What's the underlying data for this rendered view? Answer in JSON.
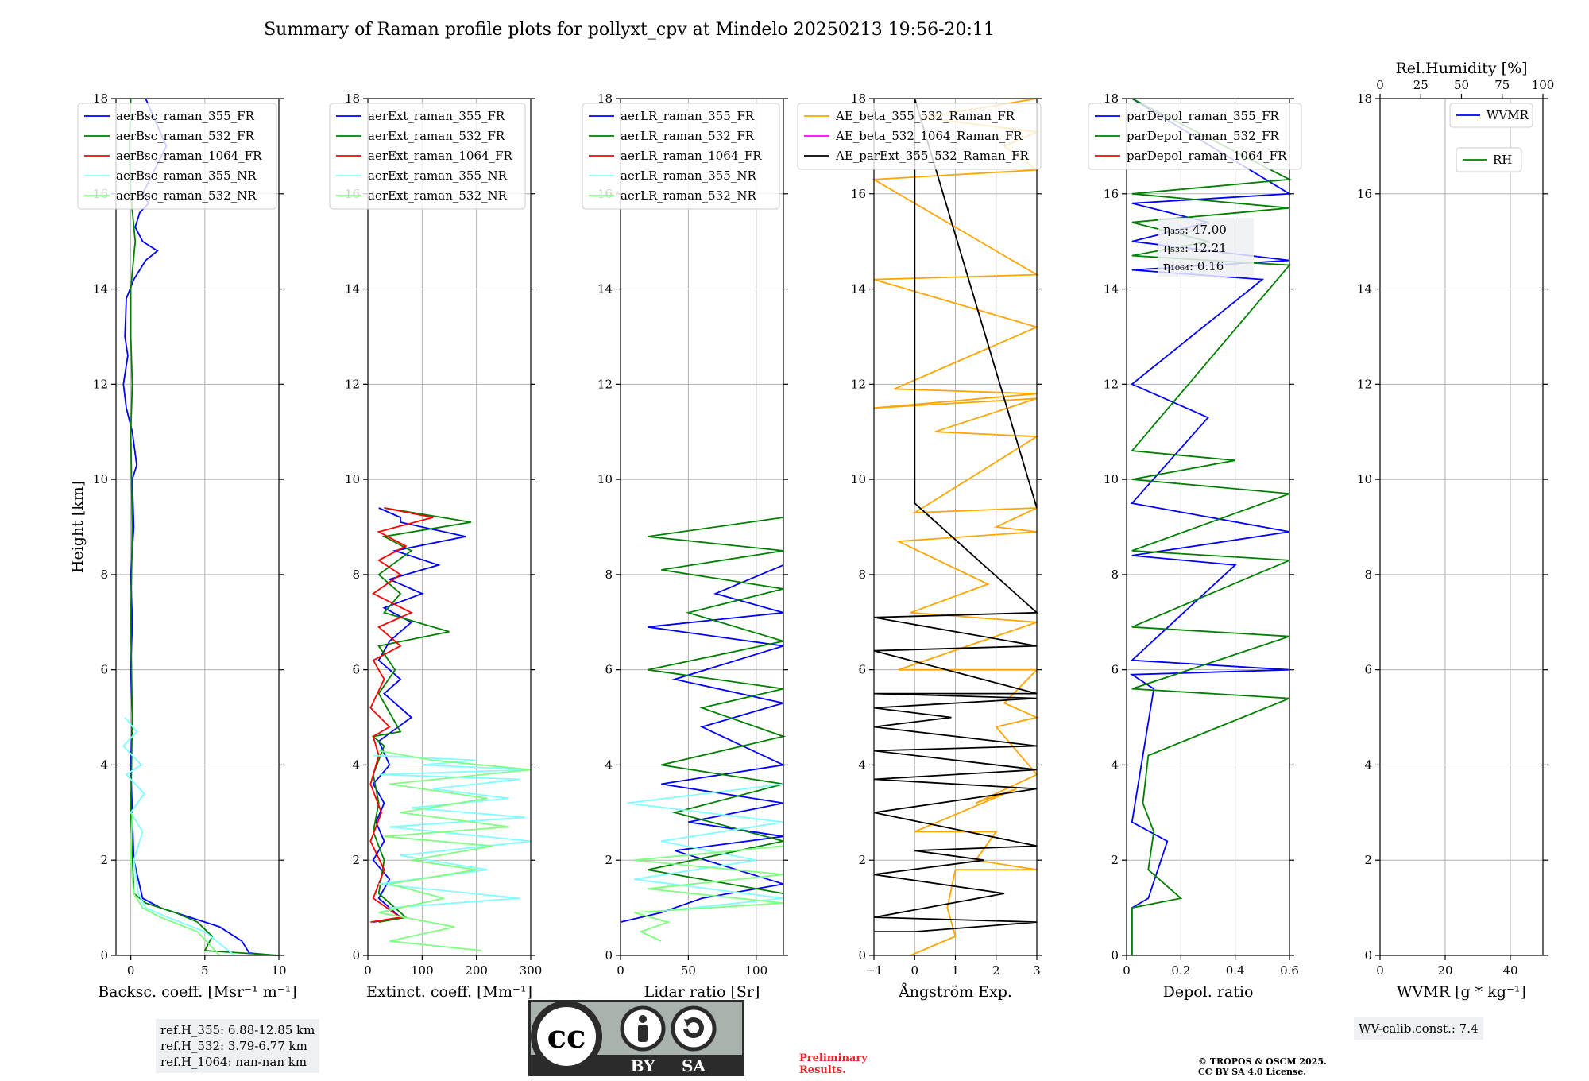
{
  "title": "Summary of Raman profile plots for pollyxt_cpv at Mindelo 20250213 19:56-20:11",
  "chart_data": [
    {
      "type": "line",
      "xlabel": "Backsc. coeff. [Msr⁻¹ m⁻¹]",
      "ylabel": "Height [km]",
      "xlim": [
        -1,
        10
      ],
      "ylim": [
        0,
        18
      ],
      "xticks": [
        0,
        5,
        10
      ],
      "yticks": [
        0,
        2,
        4,
        6,
        8,
        10,
        12,
        14,
        16,
        18
      ],
      "grid": true,
      "legend": "top-left",
      "series": [
        {
          "name": "aerBsc_raman_355_FR",
          "color": "#0000ff",
          "x": [
            9.8,
            8.0,
            7.5,
            6.0,
            4.0,
            2.0,
            0.8,
            0.2,
            0.1,
            0.0,
            0.1,
            0.0,
            0.1,
            0.0,
            0.2,
            0.1,
            0.4,
            0.1,
            -0.3,
            -0.5,
            -0.2,
            -0.4,
            -0.3,
            0.2,
            1.0,
            1.8,
            0.8,
            0.3,
            0.6,
            1.2,
            0.8,
            2.4,
            1.0
          ],
          "y": [
            0.0,
            0.05,
            0.3,
            0.6,
            0.8,
            1.0,
            1.2,
            2.0,
            3.0,
            4.0,
            5.0,
            6.0,
            7.0,
            8.0,
            9.0,
            10.0,
            10.3,
            11.0,
            11.5,
            12.0,
            12.6,
            13.0,
            13.8,
            14.2,
            14.6,
            14.8,
            15.0,
            15.3,
            15.6,
            15.8,
            16.0,
            17.0,
            18.0
          ]
        },
        {
          "name": "aerBsc_raman_532_FR",
          "color": "#008000",
          "x": [
            10.0,
            5.0,
            5.5,
            4.5,
            3.0,
            1.0,
            0.2,
            0.0,
            0.1,
            0.0,
            0.1,
            0.0,
            0.1,
            0.0,
            0.0,
            0.3,
            0.0,
            -0.1,
            0.0
          ],
          "y": [
            0.0,
            0.1,
            0.4,
            0.7,
            0.9,
            1.1,
            1.3,
            3.0,
            5.0,
            7.0,
            9.0,
            11.0,
            12.0,
            13.0,
            14.0,
            15.0,
            16.0,
            17.0,
            18.0
          ]
        },
        {
          "name": "aerBsc_raman_1064_FR",
          "color": "#ff0000",
          "x": [],
          "y": []
        },
        {
          "name": "aerBsc_raman_355_NR",
          "color": "#7fffff",
          "x": [
            7.0,
            5.0,
            2.5,
            1.0,
            0.5,
            0.2,
            0.8,
            0.0,
            0.9,
            -0.3,
            0.7,
            -0.5,
            0.4,
            -0.4
          ],
          "y": [
            0.0,
            0.5,
            0.8,
            1.0,
            1.3,
            2.0,
            2.6,
            3.0,
            3.4,
            3.8,
            4.0,
            4.4,
            4.7,
            5.0
          ]
        },
        {
          "name": "aerBsc_raman_532_NR",
          "color": "#7fff7f",
          "x": [
            6.0,
            4.5,
            2.0,
            0.8,
            0.2,
            0.0,
            0.1
          ],
          "y": [
            0.0,
            0.5,
            0.8,
            1.0,
            1.3,
            2.0,
            3.0
          ]
        }
      ]
    },
    {
      "type": "line",
      "xlabel": "Extinct. coeff. [Mm⁻¹]",
      "xlim": [
        0,
        300
      ],
      "ylim": [
        0,
        18
      ],
      "xticks": [
        0,
        100,
        200,
        300
      ],
      "yticks": [
        0,
        2,
        4,
        6,
        8,
        10,
        12,
        14,
        16,
        18
      ],
      "grid": true,
      "legend": "top-left",
      "series": [
        {
          "name": "aerExt_raman_355_FR",
          "color": "#0000ff",
          "x": [
            10,
            60,
            20,
            40,
            10,
            30,
            15,
            30,
            10,
            40,
            20,
            80,
            30,
            60,
            20,
            40,
            80,
            30,
            100,
            40,
            130,
            50,
            180,
            60,
            60,
            40,
            20
          ],
          "y": [
            0.7,
            0.8,
            1.2,
            1.6,
            2.0,
            2.4,
            2.8,
            3.2,
            3.6,
            4.0,
            4.5,
            5.0,
            5.5,
            5.8,
            6.2,
            6.6,
            7.0,
            7.3,
            7.6,
            7.9,
            8.2,
            8.5,
            8.8,
            9.1,
            9.2,
            9.3,
            9.4
          ]
        },
        {
          "name": "aerExt_raman_532_FR",
          "color": "#008000",
          "x": [
            20,
            70,
            20,
            30,
            10,
            20,
            10,
            30,
            10,
            60,
            20,
            50,
            20,
            150,
            30,
            60,
            20,
            80,
            30,
            190,
            30
          ],
          "y": [
            0.7,
            0.8,
            1.3,
            2.0,
            2.6,
            3.2,
            3.8,
            4.4,
            4.6,
            4.7,
            5.5,
            6.0,
            6.5,
            6.8,
            7.2,
            7.6,
            8.0,
            8.5,
            8.8,
            9.1,
            9.4
          ]
        },
        {
          "name": "aerExt_raman_1064_FR",
          "color": "#ff0000",
          "x": [
            5,
            60,
            10,
            30,
            5,
            25,
            5,
            20,
            10,
            40,
            5,
            30,
            10,
            60,
            20,
            80,
            10,
            60,
            20,
            70,
            20,
            120,
            30
          ],
          "y": [
            0.7,
            0.8,
            1.2,
            1.8,
            2.4,
            3.0,
            3.6,
            4.2,
            4.6,
            4.8,
            5.2,
            5.8,
            6.2,
            6.5,
            6.9,
            7.2,
            7.6,
            8.0,
            8.3,
            8.6,
            8.9,
            9.2,
            9.4
          ]
        },
        {
          "name": "aerExt_raman_355_NR",
          "color": "#7fffff",
          "x": [
            40,
            280,
            20,
            220,
            60,
            300,
            40,
            290,
            80,
            260,
            120,
            280,
            20,
            300,
            100,
            200,
            10
          ],
          "y": [
            1.0,
            1.2,
            1.5,
            1.8,
            2.1,
            2.4,
            2.7,
            2.9,
            3.1,
            3.3,
            3.5,
            3.7,
            3.8,
            3.9,
            4.0,
            4.1,
            4.2
          ]
        },
        {
          "name": "aerExt_raman_532_NR",
          "color": "#7fff7f",
          "x": [
            210,
            40,
            160,
            20,
            140,
            40,
            200,
            80,
            230,
            30,
            260,
            60,
            220,
            40,
            300,
            120,
            20
          ],
          "y": [
            0.1,
            0.3,
            0.6,
            0.9,
            1.2,
            1.5,
            1.8,
            2.0,
            2.3,
            2.5,
            2.7,
            3.0,
            3.3,
            3.6,
            3.9,
            4.1,
            4.3
          ]
        }
      ]
    },
    {
      "type": "line",
      "xlabel": "Lidar ratio [Sr]",
      "xlim": [
        0,
        120
      ],
      "ylim": [
        0,
        18
      ],
      "xticks": [
        0,
        50,
        100
      ],
      "yticks": [
        0,
        2,
        4,
        6,
        8,
        10,
        12,
        14,
        16,
        18
      ],
      "grid": true,
      "legend": "top-left",
      "series": [
        {
          "name": "aerLR_raman_355_FR",
          "color": "#0000ff",
          "x": [
            0,
            30,
            60,
            120,
            40,
            120,
            50,
            120,
            30,
            120,
            60,
            120,
            40,
            120,
            20,
            120,
            70,
            120
          ],
          "y": [
            0.7,
            0.9,
            1.2,
            1.5,
            2.2,
            2.5,
            2.8,
            3.2,
            3.6,
            4.0,
            4.8,
            5.3,
            5.8,
            6.5,
            6.9,
            7.2,
            7.6,
            8.2
          ]
        },
        {
          "name": "aerLR_raman_532_FR",
          "color": "#008000",
          "x": [
            120,
            20,
            120,
            40,
            120,
            30,
            120,
            60,
            120,
            20,
            120,
            50,
            120,
            30,
            120,
            20,
            120
          ],
          "y": [
            1.3,
            1.8,
            2.4,
            3.0,
            3.6,
            4.0,
            4.6,
            5.2,
            5.6,
            6.0,
            6.6,
            7.2,
            7.7,
            8.1,
            8.5,
            8.8,
            9.2
          ]
        },
        {
          "name": "aerLR_raman_1064_FR",
          "color": "#ff0000",
          "x": [],
          "y": []
        },
        {
          "name": "aerLR_raman_355_NR",
          "color": "#7fffff",
          "x": [
            20,
            120,
            10,
            100,
            30,
            120,
            5,
            120
          ],
          "y": [
            0.9,
            1.2,
            1.6,
            2.0,
            2.4,
            2.8,
            3.2,
            3.6
          ]
        },
        {
          "name": "aerLR_raman_532_NR",
          "color": "#7fff7f",
          "x": [
            30,
            15,
            35,
            10,
            120,
            20,
            120,
            10,
            120
          ],
          "y": [
            0.3,
            0.5,
            0.7,
            0.9,
            1.1,
            1.4,
            1.7,
            2.0,
            2.3
          ]
        }
      ]
    },
    {
      "type": "line",
      "xlabel": "Ångström Exp.",
      "xlim": [
        -1,
        3
      ],
      "ylim": [
        0,
        18
      ],
      "xticks": [
        -1,
        0,
        1,
        2,
        3
      ],
      "yticks": [
        0,
        2,
        4,
        6,
        8,
        10,
        12,
        14,
        16,
        18
      ],
      "grid": true,
      "legend": "top-left",
      "series": [
        {
          "name": "AE_beta_355_532_Raman_FR",
          "color": "#ffa500",
          "x": [
            -0.1,
            1.0,
            0.8,
            1.0,
            3.0,
            1.5,
            2.0,
            0.0,
            2.5,
            1.5,
            3.0,
            2.0,
            3.0,
            2.2,
            3.0,
            -0.4,
            3.0,
            -0.1,
            1.8,
            -0.4,
            3.0,
            2.0,
            3.0,
            0.0,
            3.0,
            0.5,
            3.0,
            -1.0,
            3.0,
            -0.5,
            3.0,
            -1.0,
            3.0,
            -1.0,
            3.0,
            2.2,
            3.0,
            0.2,
            3.0
          ],
          "y": [
            0.0,
            0.4,
            1.0,
            1.8,
            1.8,
            2.0,
            2.6,
            2.6,
            3.5,
            3.2,
            3.8,
            4.8,
            5.0,
            5.3,
            6.0,
            6.0,
            7.0,
            7.2,
            7.8,
            8.7,
            8.9,
            9.0,
            9.4,
            9.3,
            10.9,
            11.0,
            11.7,
            11.5,
            11.8,
            11.9,
            13.2,
            14.2,
            14.3,
            16.3,
            16.5,
            17.0,
            17.3,
            17.6,
            18.0
          ]
        },
        {
          "name": "AE_beta_532_1064_Raman_FR",
          "color": "#ff00ff",
          "x": [],
          "y": []
        },
        {
          "name": "AE_parExt_355_532_Raman_FR",
          "color": "#000000",
          "x": [
            -1.0,
            0.0,
            3.0,
            -1.0,
            2.2,
            -1.0,
            1.7,
            0.0,
            3.0,
            -1.0,
            3.0,
            -1.0,
            3.0,
            -1.0,
            3.0,
            -1.0,
            0.9,
            -1.0,
            3.0,
            -1.0,
            3.0,
            -1.0,
            3.0,
            -1.0,
            3.0,
            0.0,
            0.0,
            3.0
          ],
          "y": [
            0.5,
            0.5,
            0.7,
            0.8,
            1.3,
            1.7,
            2.0,
            2.2,
            2.3,
            3.0,
            3.5,
            3.7,
            3.9,
            4.3,
            4.4,
            4.8,
            5.0,
            5.2,
            5.4,
            5.5,
            5.5,
            6.4,
            6.5,
            7.1,
            7.2,
            9.5,
            18.0,
            9.4
          ]
        }
      ]
    },
    {
      "type": "line",
      "xlabel": "Depol. ratio",
      "xlim": [
        0,
        0.6
      ],
      "ylim": [
        0,
        18
      ],
      "xticks": [
        0.0,
        0.2,
        0.4,
        0.6
      ],
      "yticks": [
        0,
        2,
        4,
        6,
        8,
        10,
        12,
        14,
        16,
        18
      ],
      "grid": true,
      "legend": "top-left",
      "series": [
        {
          "name": "parDepol_raman_355_FR",
          "color": "#0000ff",
          "x": [
            0.02,
            0.02,
            0.08,
            0.15,
            0.02,
            0.1,
            0.02,
            0.6,
            0.02,
            0.4,
            0.02,
            0.6,
            0.02,
            0.3,
            0.02,
            0.5,
            0.02,
            0.6,
            0.02,
            0.3,
            0.02,
            0.6,
            0.02
          ],
          "y": [
            0.0,
            1.0,
            1.2,
            2.4,
            2.8,
            5.6,
            5.9,
            6.0,
            6.2,
            8.2,
            8.4,
            8.9,
            9.5,
            11.3,
            12.0,
            14.2,
            14.4,
            14.6,
            15.0,
            15.4,
            15.8,
            16.0,
            18.0
          ]
        },
        {
          "name": "parDepol_raman_532_FR",
          "color": "#008000",
          "x": [
            0.02,
            0.02,
            0.2,
            0.08,
            0.1,
            0.06,
            0.08,
            0.6,
            0.02,
            0.6,
            0.02,
            0.6,
            0.02,
            0.6,
            0.02,
            0.4,
            0.02,
            0.6,
            0.02,
            0.3,
            0.02,
            0.6,
            0.02,
            0.6,
            0.02
          ],
          "y": [
            0.0,
            1.0,
            1.2,
            1.8,
            2.6,
            3.2,
            4.2,
            5.4,
            5.6,
            6.7,
            6.9,
            8.3,
            8.5,
            9.7,
            10.0,
            10.4,
            10.6,
            14.5,
            14.7,
            15.0,
            15.4,
            15.7,
            16.0,
            16.3,
            18.0
          ]
        },
        {
          "name": "parDepol_raman_1064_FR",
          "color": "#ff0000",
          "x": [],
          "y": []
        }
      ],
      "annotations": [
        "η₃₅₅: 47.00",
        "η₅₃₂: 12.21",
        "η₁₀₆₄: 0.16"
      ]
    },
    {
      "type": "line",
      "xlabel": "WVMR [g * kg⁻¹]",
      "x2label": "Rel.Humidity [%]",
      "xlim": [
        0,
        50
      ],
      "x2lim": [
        0,
        100
      ],
      "ylim": [
        0,
        18
      ],
      "xticks": [
        0,
        20,
        40
      ],
      "x2ticks": [
        0,
        25,
        50,
        75,
        100
      ],
      "yticks": [
        0,
        2,
        4,
        6,
        8,
        10,
        12,
        14,
        16,
        18
      ],
      "grid": true,
      "series": [
        {
          "name": "WVMR",
          "color": "#0000ff",
          "x": [],
          "y": []
        },
        {
          "name": "RH",
          "color": "#008000",
          "x": [],
          "y": []
        }
      ]
    }
  ],
  "notes": {
    "ref_lines": [
      "ref.H_355: 6.88-12.85 km",
      "ref.H_532: 3.79-6.77 km",
      "ref.H_1064: nan-nan km"
    ],
    "preliminary": [
      "Preliminary",
      "Results."
    ],
    "copyright": [
      "© TROPOS & OSCM 2025.",
      "CC BY SA 4.0 License."
    ],
    "wv_calib": "WV-calib.const.: 7.4",
    "license_badge": {
      "cc": "cc",
      "by": "BY",
      "sa": "SA"
    }
  },
  "colors": {
    "preliminary": "#e8242b",
    "badge_dark": "#2b2b2b",
    "badge_light": "#aab2ad"
  }
}
